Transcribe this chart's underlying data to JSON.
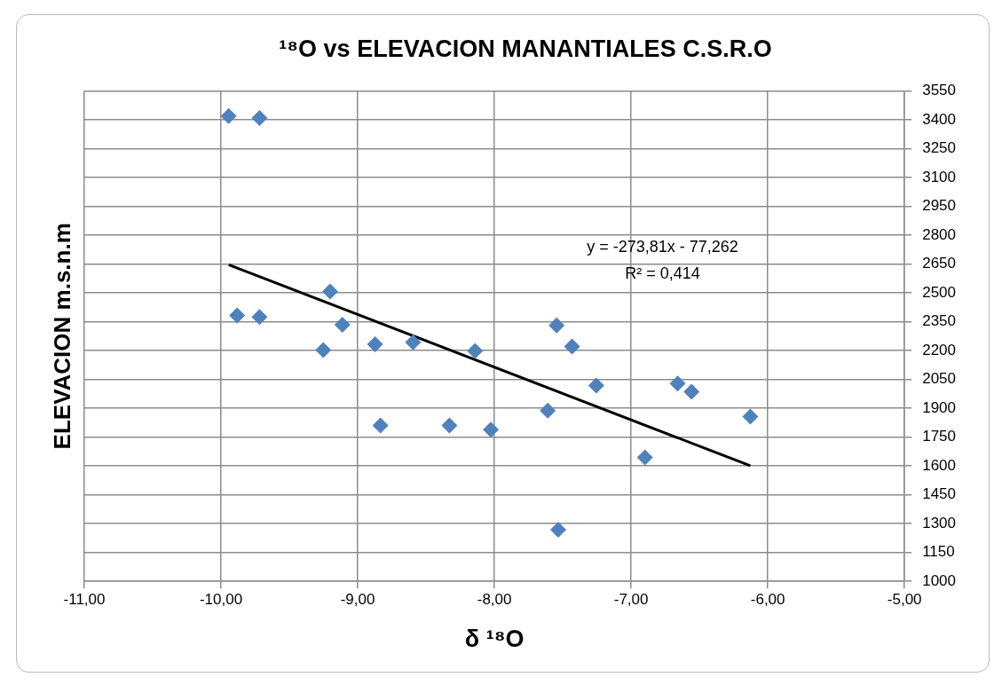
{
  "chart_data": {
    "type": "scatter",
    "title": "¹⁸O vs ELEVACION MANANTIALES C.S.R.O",
    "xlabel": "δ ¹⁸O",
    "ylabel": "ELEVACION m.s.n.m",
    "series": [
      {
        "color": "#4f81bd",
        "marker": "diamond",
        "x": [
          -9.944,
          -9.718,
          -9.882,
          -9.718,
          -9.202,
          -9.112,
          -9.252,
          -8.873,
          -8.595,
          -8.142,
          -8.834,
          -8.329,
          -8.026,
          -7.545,
          -7.432,
          -7.255,
          -7.61,
          -6.66,
          -6.558,
          -6.128,
          -6.899,
          -7.533
        ],
        "values": [
          3419,
          3409,
          2382,
          2374,
          2507,
          2334,
          2203,
          2233,
          2243,
          2198,
          1810,
          1810,
          1788,
          2331,
          2221,
          2018,
          1888,
          2029,
          1986,
          1857,
          1644,
          1269
        ]
      },
      {
        "type": "line",
        "color": "#000000",
        "marker": "none",
        "line_style": "solid",
        "x": [
          -9.944,
          -6.128
        ],
        "values": [
          2646,
          1601
        ]
      }
    ],
    "xlim": [
      -11,
      -5
    ],
    "xticks": [
      {
        "value": -11,
        "label": "-11,00"
      },
      {
        "value": -10,
        "label": "-10,00"
      },
      {
        "value": -9,
        "label": "-9,00"
      },
      {
        "value": -8,
        "label": "-8,00"
      },
      {
        "value": -7,
        "label": "-7,00"
      },
      {
        "value": -6,
        "label": "-6,00"
      },
      {
        "value": -5,
        "label": "-5,00"
      }
    ],
    "ylim": [
      1000,
      3550
    ],
    "yticks": [
      1000,
      1150,
      1300,
      1450,
      1600,
      1750,
      1900,
      2050,
      2200,
      2350,
      2500,
      2650,
      2800,
      2950,
      3100,
      3250,
      3400,
      3550
    ],
    "annotations": [
      "y = -273,81x - 77,262",
      "R² = 0,414"
    ],
    "grid": true,
    "legend": false
  }
}
